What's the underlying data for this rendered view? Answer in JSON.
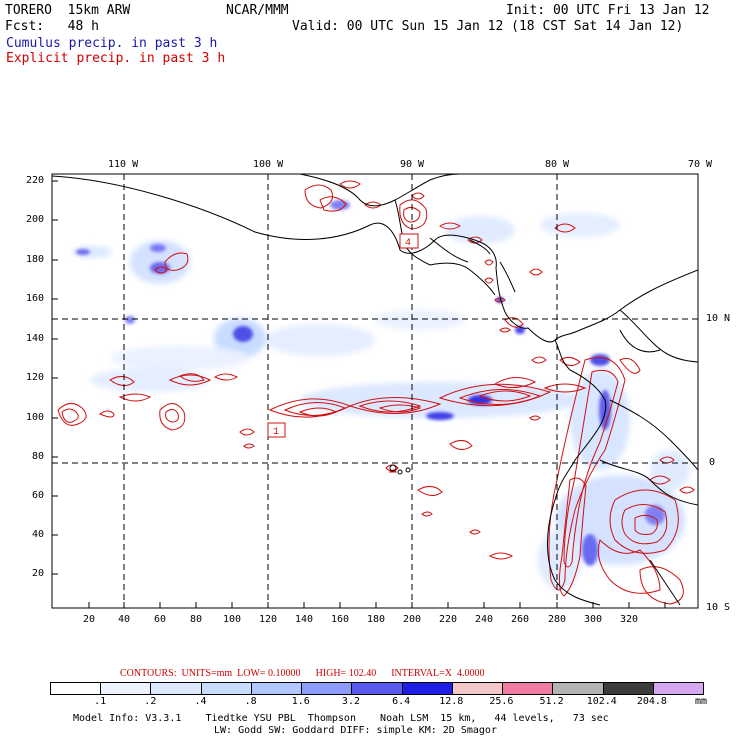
{
  "header": {
    "model_label": "TORERO  15km ARW",
    "org_label": "NCAR/MMM",
    "init_label": "Init: 00 UTC Fri 13 Jan 12",
    "fcst_label": "Fcst:   48 h",
    "valid_label": "Valid: 00 UTC Sun 15 Jan 12 (18 CST Sat 14 Jan 12)",
    "cumulus_label": "Cumulus precip. in past 3 h",
    "explicit_label": "Explicit precip. in past 3 h"
  },
  "map": {
    "top_lon_labels": [
      "110 W",
      "100 W",
      "90 W",
      "80 W",
      "70 W"
    ],
    "right_lat_labels": [
      "10 N",
      "0",
      "10 S"
    ],
    "left_y_ticks": [
      "220",
      "200",
      "180",
      "160",
      "140",
      "120",
      "100",
      "80",
      "60",
      "40",
      "20"
    ],
    "bottom_x_ticks": [
      "20",
      "40",
      "60",
      "80",
      "100",
      "120",
      "140",
      "160",
      "180",
      "200",
      "220",
      "240",
      "260",
      "280",
      "300",
      "320"
    ],
    "markers": [
      {
        "label": "4"
      },
      {
        "label": "1"
      }
    ],
    "colors": {
      "cumulus": "#2a2ae6",
      "explicit": "#d01010",
      "coast": "#000000"
    }
  },
  "contour_info": {
    "label_contours": "CONTOURS:",
    "label_units": "UNITS=mm",
    "label_low": "LOW= 0.10000",
    "label_high": "HIGH= 102.40",
    "label_interval": "INTERVAL=X  4.0000"
  },
  "colorbar": {
    "unit": "mm",
    "tick_labels": [
      ".1",
      ".2",
      ".4",
      ".8",
      "1.6",
      "3.2",
      "6.4",
      "12.8",
      "25.6",
      "51.2",
      "102.4",
      "204.8"
    ],
    "swatches": [
      "#ffffff",
      "#eef4ff",
      "#dde9ff",
      "#c8dcff",
      "#b0c8ff",
      "#8c9cff",
      "#5a5af0",
      "#1e1ee6",
      "#f2c8c8",
      "#f07aa0",
      "#b4b4b4",
      "#3c3c3c",
      "#d7a6f0"
    ]
  },
  "footer": {
    "line1": "Model Info: V3.3.1    Tiedtke YSU PBL  Thompson    Noah LSM  15 km,   44 levels,   73 sec",
    "line2": "LW: Godd SW: Goddard DIFF: simple KM: 2D Smagor"
  }
}
